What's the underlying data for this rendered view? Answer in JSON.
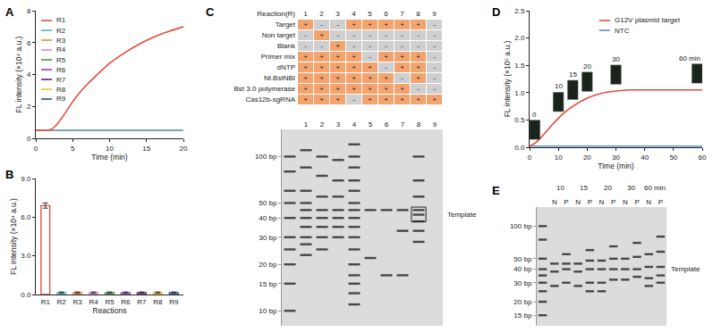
{
  "chart_data": [
    {
      "panel": "A",
      "type": "line",
      "xlabel": "Time (min)",
      "ylabel": "FL intensity (×10⁴ a.u.)",
      "x": [
        0,
        1,
        2,
        2.5,
        3,
        4,
        5,
        6,
        7,
        8,
        10,
        12,
        14,
        16,
        18,
        20
      ],
      "xlim": [
        0,
        20
      ],
      "xticks": [
        0,
        5,
        10,
        15,
        20
      ],
      "ylim": [
        0,
        8
      ],
      "yticks": [
        0,
        2,
        4,
        6,
        8
      ],
      "legend": "upper left",
      "series": [
        {
          "name": "R1",
          "color": "#e5493a",
          "values": [
            0.5,
            0.5,
            0.55,
            0.7,
            0.95,
            1.6,
            2.3,
            2.9,
            3.4,
            3.85,
            4.7,
            5.35,
            5.9,
            6.35,
            6.7,
            7.0
          ]
        },
        {
          "name": "R2",
          "color": "#4fb8c8",
          "values": [
            0.5,
            0.5,
            0.5,
            0.5,
            0.5,
            0.5,
            0.5,
            0.5,
            0.5,
            0.5,
            0.5,
            0.5,
            0.5,
            0.5,
            0.5,
            0.5
          ]
        },
        {
          "name": "R3",
          "color": "#f08a2c",
          "values": [
            0.5,
            0.5,
            0.5,
            0.5,
            0.5,
            0.5,
            0.5,
            0.5,
            0.5,
            0.5,
            0.5,
            0.5,
            0.5,
            0.5,
            0.5,
            0.5
          ]
        },
        {
          "name": "R4",
          "color": "#e78ac3",
          "values": [
            0.5,
            0.5,
            0.5,
            0.5,
            0.5,
            0.5,
            0.5,
            0.5,
            0.5,
            0.5,
            0.5,
            0.5,
            0.5,
            0.5,
            0.5,
            0.5
          ]
        },
        {
          "name": "R5",
          "color": "#3a9a3a",
          "values": [
            0.5,
            0.5,
            0.5,
            0.5,
            0.5,
            0.5,
            0.5,
            0.5,
            0.5,
            0.5,
            0.5,
            0.5,
            0.5,
            0.5,
            0.5,
            0.5
          ]
        },
        {
          "name": "R6",
          "color": "#8e44ad",
          "values": [
            0.5,
            0.5,
            0.5,
            0.5,
            0.5,
            0.5,
            0.5,
            0.5,
            0.5,
            0.5,
            0.5,
            0.5,
            0.5,
            0.5,
            0.5,
            0.5
          ]
        },
        {
          "name": "R7",
          "color": "#6a1b6a",
          "values": [
            0.5,
            0.5,
            0.5,
            0.5,
            0.5,
            0.5,
            0.5,
            0.5,
            0.5,
            0.5,
            0.5,
            0.5,
            0.5,
            0.5,
            0.5,
            0.5
          ]
        },
        {
          "name": "R8",
          "color": "#f2c12e",
          "values": [
            0.5,
            0.5,
            0.5,
            0.5,
            0.5,
            0.5,
            0.5,
            0.5,
            0.5,
            0.5,
            0.5,
            0.5,
            0.5,
            0.5,
            0.5,
            0.5
          ]
        },
        {
          "name": "R9",
          "color": "#1f4e9c",
          "values": [
            0.5,
            0.5,
            0.5,
            0.5,
            0.5,
            0.5,
            0.5,
            0.5,
            0.5,
            0.5,
            0.5,
            0.5,
            0.5,
            0.5,
            0.5,
            0.5
          ]
        }
      ]
    },
    {
      "panel": "B",
      "type": "bar",
      "xlabel": "Reactions",
      "ylabel": "FL intensity (×10⁴ a.u.)",
      "categories": [
        "R1",
        "R2",
        "R3",
        "R4",
        "R5",
        "R6",
        "R7",
        "R8",
        "R9"
      ],
      "values": [
        6.9,
        0.15,
        0.15,
        0.15,
        0.15,
        0.15,
        0.15,
        0.15,
        0.15
      ],
      "error": [
        0.2,
        0.05,
        0.05,
        0.05,
        0.05,
        0.05,
        0.05,
        0.05,
        0.05
      ],
      "colors": [
        "#e5493a",
        "#4fb8c8",
        "#f08a2c",
        "#e78ac3",
        "#3a9a3a",
        "#8e44ad",
        "#6a1b6a",
        "#f2c12e",
        "#1f4e9c"
      ],
      "ylim": [
        0,
        9
      ],
      "yticks": [
        {
          "value": 0,
          "label": "0.0"
        },
        {
          "value": 3,
          "label": "3.0"
        },
        {
          "value": 6,
          "label": "6.0"
        },
        {
          "value": 9,
          "label": "9.0"
        }
      ]
    },
    {
      "panel": "C",
      "type": "gel",
      "table": {
        "header": "Reaction(R)",
        "columns": [
          "1",
          "2",
          "3",
          "4",
          "5",
          "6",
          "7",
          "8",
          "9"
        ],
        "rows": [
          {
            "label": "Target",
            "marks": [
              "+",
              "-",
              "-",
              "+",
              "+",
              "+",
              "+",
              "+",
              "-"
            ]
          },
          {
            "label": "Non target",
            "marks": [
              "-",
              "+",
              "-",
              "-",
              "-",
              "-",
              "-",
              "-",
              "-"
            ]
          },
          {
            "label": "Blank",
            "marks": [
              "-",
              "-",
              "+",
              "-",
              "-",
              "-",
              "-",
              "-",
              "-"
            ]
          },
          {
            "label": "Primer mix",
            "marks": [
              "+",
              "+",
              "+",
              "+",
              "-",
              "+",
              "+",
              "+",
              "-"
            ]
          },
          {
            "label": "dNTP",
            "marks": [
              "+",
              "+",
              "+",
              "+",
              "+",
              "-",
              "+",
              "+",
              "-"
            ]
          },
          {
            "label": "Nt.BstNBI",
            "marks": [
              "+",
              "+",
              "+",
              "+",
              "+",
              "+",
              "-",
              "+",
              "-"
            ]
          },
          {
            "label": "Bst 3.0 polymerase",
            "marks": [
              "+",
              "+",
              "+",
              "+",
              "+",
              "+",
              "+",
              "-",
              "-"
            ]
          },
          {
            "label": "Cas12b-sgRNA",
            "marks": [
              "+",
              "+",
              "+",
              "-",
              "+",
              "+",
              "+",
              "+",
              "+"
            ]
          }
        ]
      },
      "lanes": [
        {
          "label": null,
          "bands": [
            100,
            80,
            60,
            50,
            40,
            30,
            25,
            20,
            15,
            10
          ]
        },
        {
          "label": "1",
          "bands": [
            110,
            85,
            60,
            50,
            45,
            40,
            35,
            30,
            27,
            23
          ]
        },
        {
          "label": "2",
          "bands": [
            100,
            75,
            55,
            45,
            40,
            35,
            30,
            25
          ]
        },
        {
          "label": "3",
          "bands": [
            95,
            70,
            55,
            45,
            40,
            35,
            30
          ]
        },
        {
          "label": "4",
          "bands": [
            120,
            100,
            85,
            70,
            60,
            50,
            45,
            40,
            35,
            30,
            25,
            20,
            17,
            15,
            13,
            11
          ]
        },
        {
          "label": "5",
          "bands": [
            45,
            22
          ]
        },
        {
          "label": "6",
          "bands": [
            45,
            17
          ]
        },
        {
          "label": "7",
          "bands": [
            45,
            33,
            17
          ]
        },
        {
          "label": "8",
          "bands": [
            100,
            70,
            55,
            45,
            42,
            38,
            33,
            28
          ]
        },
        {
          "label": "9",
          "bands": []
        }
      ],
      "ylim": [
        8,
        150
      ],
      "yticks": [
        {
          "value": 100,
          "label": "100 bp"
        },
        {
          "value": 50,
          "label": "50 bp"
        },
        {
          "value": 40,
          "label": "40 bp"
        },
        {
          "value": 30,
          "label": "30 bp"
        },
        {
          "value": 20,
          "label": "20 bp"
        },
        {
          "value": 15,
          "label": "15 bp"
        },
        {
          "value": 10,
          "label": "10 bp"
        }
      ],
      "annotations": [
        {
          "text": "Template",
          "y": 42,
          "lane": 8
        }
      ]
    },
    {
      "panel": "D",
      "type": "line",
      "xlabel": "Time (min)",
      "ylabel": "FL intensity (×10⁵ a.u.)",
      "x": [
        0,
        2,
        4,
        6,
        8,
        10,
        12,
        15,
        20,
        25,
        30,
        35,
        40,
        50,
        60
      ],
      "xlim": [
        0,
        60
      ],
      "xticks": [
        0,
        10,
        20,
        30,
        40,
        50,
        60
      ],
      "ylim": [
        0,
        2.5
      ],
      "yticks": [
        {
          "value": 0,
          "label": "0.0"
        },
        {
          "value": 0.5,
          "label": "0.5"
        },
        {
          "value": 1,
          "label": "1.0"
        },
        {
          "value": 1.5,
          "label": "1.5"
        },
        {
          "value": 2,
          "label": "2.0"
        },
        {
          "value": 2.5,
          "label": "2.5"
        }
      ],
      "legend": "upper right",
      "series": [
        {
          "name": "G12V plasmid target",
          "color": "#e5493a",
          "values": [
            0.02,
            0.08,
            0.18,
            0.3,
            0.42,
            0.53,
            0.63,
            0.75,
            0.9,
            0.99,
            1.03,
            1.05,
            1.05,
            1.05,
            1.05
          ]
        },
        {
          "name": "NTC",
          "color": "#5a8fd0",
          "values": [
            0.02,
            0.02,
            0.02,
            0.02,
            0.02,
            0.02,
            0.02,
            0.02,
            0.02,
            0.02,
            0.02,
            0.02,
            0.02,
            0.02,
            0.02
          ]
        }
      ],
      "insets": [
        {
          "x": 0,
          "label": "0"
        },
        {
          "x": 10,
          "label": "10"
        },
        {
          "x": 15,
          "label": "15"
        },
        {
          "x": 20,
          "label": "20"
        },
        {
          "x": 30,
          "label": "30"
        },
        {
          "x": 60,
          "label": "60 min"
        }
      ]
    },
    {
      "panel": "E",
      "type": "gel",
      "lanes": [
        {
          "label": null,
          "group": null,
          "bands": [
            100,
            75,
            50,
            40,
            35,
            30,
            25,
            20,
            15
          ]
        },
        {
          "label": "N",
          "group": "10",
          "bands": [
            45,
            38,
            28
          ]
        },
        {
          "label": "P",
          "group": "10",
          "bands": [
            55,
            45,
            40,
            30
          ]
        },
        {
          "label": "N",
          "group": "15",
          "bands": [
            45,
            38,
            28
          ]
        },
        {
          "label": "P",
          "group": "15",
          "bands": [
            60,
            48,
            40,
            30,
            25
          ]
        },
        {
          "label": "N",
          "group": "20",
          "bands": [
            48,
            40,
            30,
            25
          ]
        },
        {
          "label": "P",
          "group": "20",
          "bands": [
            65,
            50,
            40,
            32
          ]
        },
        {
          "label": "N",
          "group": "30",
          "bands": [
            50,
            40,
            32
          ]
        },
        {
          "label": "P",
          "group": "30",
          "bands": [
            70,
            52,
            40,
            34
          ]
        },
        {
          "label": "N",
          "group": "60 min",
          "bands": [
            55,
            42,
            33,
            28
          ]
        },
        {
          "label": "P",
          "group": "60 min",
          "bands": [
            80,
            58,
            42,
            35,
            30
          ]
        }
      ],
      "ylim": [
        12,
        150
      ],
      "yticks": [
        {
          "value": 100,
          "label": "100 bp"
        },
        {
          "value": 50,
          "label": "50 bp"
        },
        {
          "value": 40,
          "label": "40 bp"
        },
        {
          "value": 30,
          "label": "30 bp"
        },
        {
          "value": 20,
          "label": "20 bp"
        },
        {
          "value": 15,
          "label": "15 bp"
        }
      ],
      "annotations": [
        {
          "text": "Template",
          "y": 40
        }
      ]
    }
  ]
}
